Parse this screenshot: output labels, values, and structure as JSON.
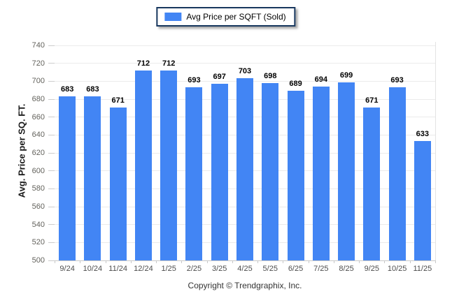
{
  "chart_data": {
    "type": "bar",
    "title": "",
    "legend": [
      "Avg Price per SQFT (Sold)"
    ],
    "legend_position": "top-center",
    "categories": [
      "9/24",
      "10/24",
      "11/24",
      "12/24",
      "1/25",
      "2/25",
      "3/25",
      "4/25",
      "5/25",
      "6/25",
      "7/25",
      "8/25",
      "9/25",
      "10/25",
      "11/25"
    ],
    "series": [
      {
        "name": "Avg Price per SQFT (Sold)",
        "values": [
          683,
          683,
          671,
          712,
          712,
          693,
          697,
          703,
          698,
          689,
          694,
          699,
          671,
          693,
          633
        ]
      }
    ],
    "xlabel": "",
    "ylabel": "Avg. Price per SQ. FT.",
    "ylim": [
      500,
      740
    ],
    "yticks": [
      500,
      520,
      540,
      560,
      580,
      600,
      620,
      640,
      660,
      680,
      700,
      720,
      740
    ],
    "grid": "horizontal",
    "bar_color": "#4285f4",
    "gridline_color": "#ebebeb",
    "axis_color": "#c9c9c9"
  },
  "footer": {
    "copyright": "Copyright © Trendgraphix, Inc."
  }
}
